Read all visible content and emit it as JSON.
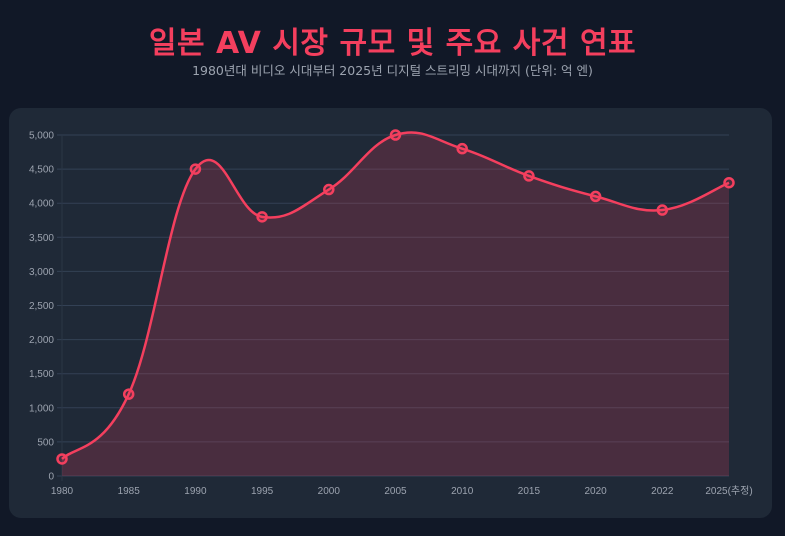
{
  "header": {
    "title": "일본 AV 시장 규모 및 주요 사건 연표",
    "subtitle": "1980년대 비디오 시대부터 2025년 디지털 스트리밍 시대까지 (단위: 억 엔)"
  },
  "colors": {
    "accent": "#f43f5e",
    "background": "#111827",
    "card": "#1f2937",
    "fill": "rgba(244,63,94,0.2)"
  },
  "chart_data": {
    "type": "area",
    "title": "일본 AV 시장 규모 및 주요 사건 연표",
    "subtitle": "1980년대 비디오 시대부터 2025년 디지털 스트리밍 시대까지 (단위: 억 엔)",
    "categories": [
      "1980",
      "1985",
      "1990",
      "1995",
      "2000",
      "2005",
      "2010",
      "2015",
      "2020",
      "2022",
      "2025(추정)"
    ],
    "series": [
      {
        "name": "시장 규모 (억 엔)",
        "values": [
          250,
          1200,
          4500,
          3800,
          4200,
          5000,
          4800,
          4400,
          4100,
          3900,
          4300
        ]
      }
    ],
    "xlabel": "",
    "ylabel": "",
    "ylim": [
      0,
      5000
    ],
    "yticks": [
      "0",
      "500",
      "1,000",
      "1,500",
      "2,000",
      "2,500",
      "3,000",
      "3,500",
      "4,000",
      "4,500",
      "5,000"
    ],
    "grid": true,
    "legend": "none"
  }
}
